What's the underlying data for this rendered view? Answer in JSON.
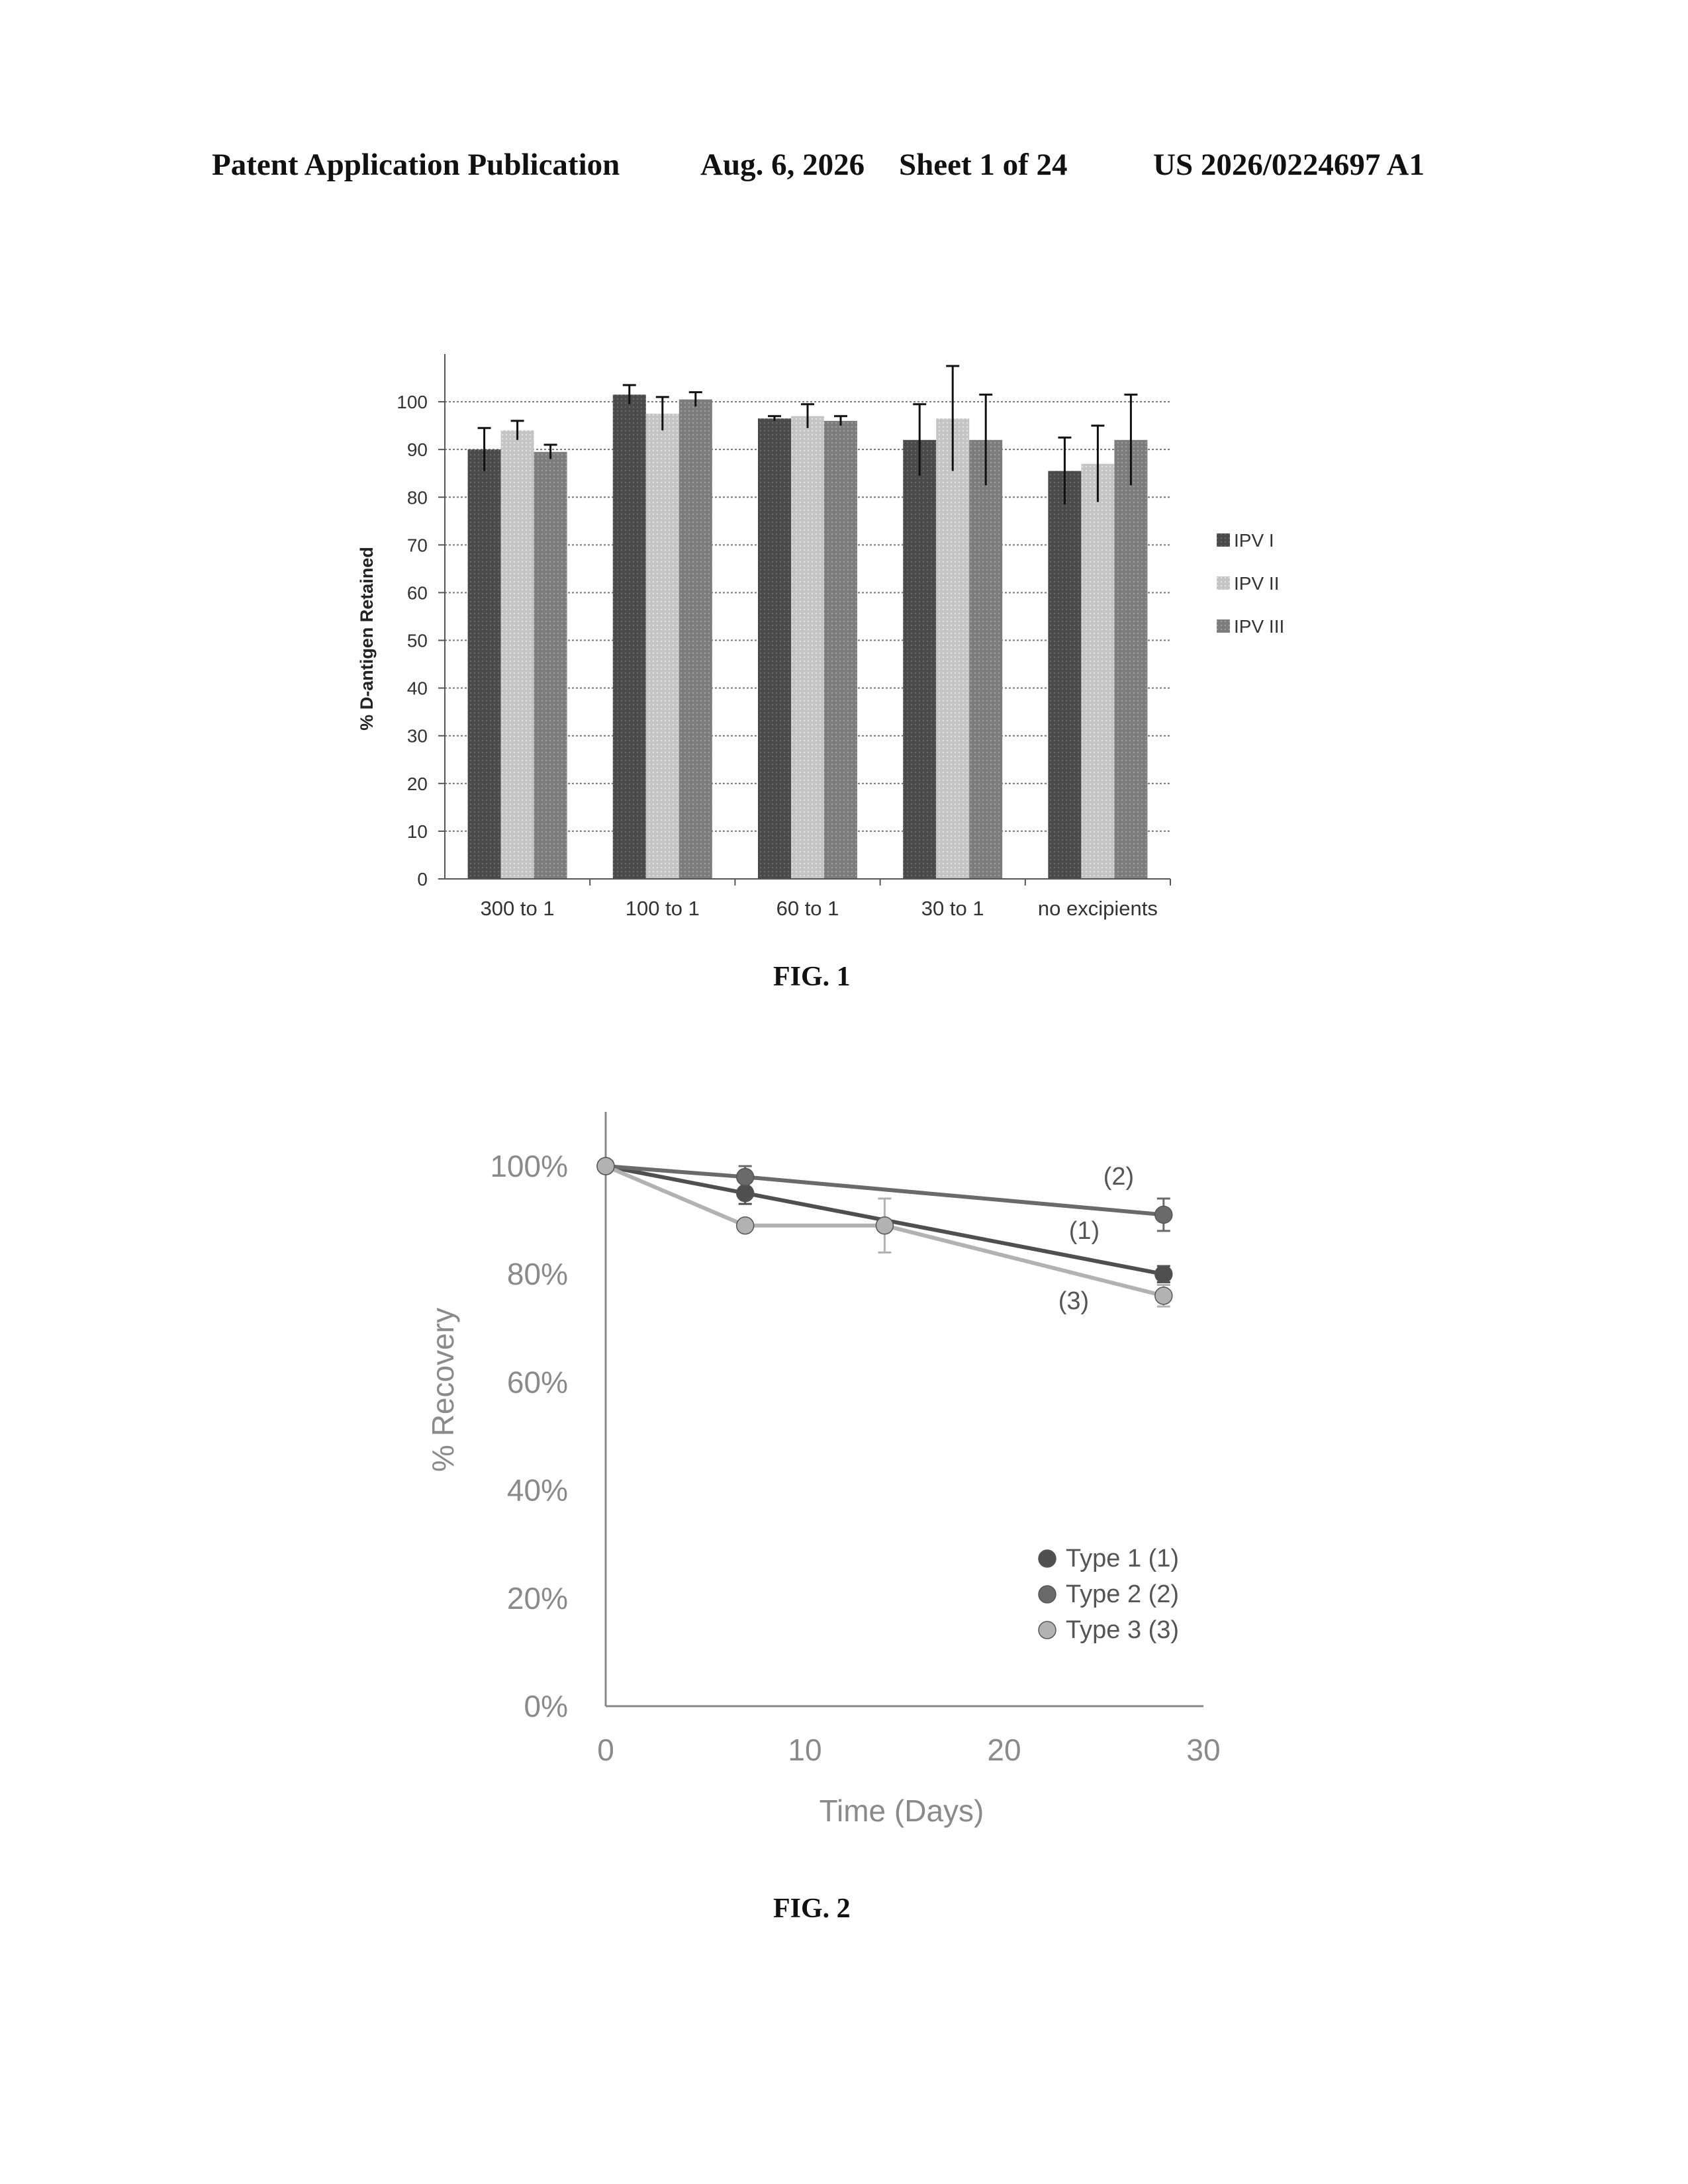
{
  "header": {
    "publication": "Patent Application Publication",
    "date": "Aug. 6, 2026",
    "sheet": "Sheet 1 of 24",
    "number": "US 2026/0224697 A1"
  },
  "figures": {
    "fig1_label": "FIG. 1",
    "fig2_label": "FIG. 2"
  },
  "colors": {
    "ipv1": "#4a4a4a",
    "ipv2": "#c4c4c4",
    "ipv3": "#7c7c7c",
    "type1": "#4f4f4f",
    "type2": "#6a6a6a",
    "type3": "#b2b2b2"
  },
  "chart_data": [
    {
      "type": "bar",
      "title": "",
      "xlabel": "",
      "ylabel": "% D-antigen Retained",
      "categories": [
        "300 to 1",
        "100 to 1",
        "60 to 1",
        "30 to 1",
        "no excipients"
      ],
      "ylim": [
        0,
        100
      ],
      "yticks": [
        "0",
        "10",
        "20",
        "30",
        "40",
        "50",
        "60",
        "70",
        "80",
        "90",
        "100"
      ],
      "grid": true,
      "legend_position": "right",
      "series": [
        {
          "name": "IPV I",
          "values": [
            90,
            101.5,
            96.5,
            92,
            85.5
          ],
          "error": [
            4.5,
            2,
            0.5,
            7.5,
            7
          ]
        },
        {
          "name": "IPV II",
          "values": [
            94,
            97.5,
            97,
            96.5,
            87
          ],
          "error": [
            2,
            3.5,
            2.5,
            11,
            8
          ]
        },
        {
          "name": "IPV III",
          "values": [
            89.5,
            100.5,
            96,
            92,
            92
          ],
          "error": [
            1.5,
            1.5,
            1,
            9.5,
            9.5
          ]
        }
      ]
    },
    {
      "type": "line",
      "title": "",
      "xlabel": "Time (Days)",
      "ylabel": "% Recovery",
      "xlim": [
        0,
        30
      ],
      "ylim": [
        0,
        1
      ],
      "xticks": [
        "0",
        "10",
        "20",
        "30"
      ],
      "yticks": [
        "0%",
        "20%",
        "40%",
        "60%",
        "80%",
        "100%"
      ],
      "grid": false,
      "legend_position": "bottom-right",
      "annotations": [
        "(1)",
        "(2)",
        "(3)"
      ],
      "series": [
        {
          "name": "Type 1 (1)",
          "x": [
            0,
            7,
            28
          ],
          "y": [
            1.0,
            0.95,
            0.8
          ],
          "error": [
            0,
            0.02,
            0.015
          ]
        },
        {
          "name": "Type 2 (2)",
          "x": [
            0,
            7,
            28
          ],
          "y": [
            1.0,
            0.98,
            0.91
          ],
          "error": [
            0,
            0.02,
            0.03
          ]
        },
        {
          "name": "Type 3 (3)",
          "x": [
            0,
            7,
            14,
            28
          ],
          "y": [
            1.0,
            0.89,
            0.89,
            0.76
          ],
          "error": [
            0,
            0.01,
            0.05,
            0.02
          ]
        }
      ]
    }
  ]
}
